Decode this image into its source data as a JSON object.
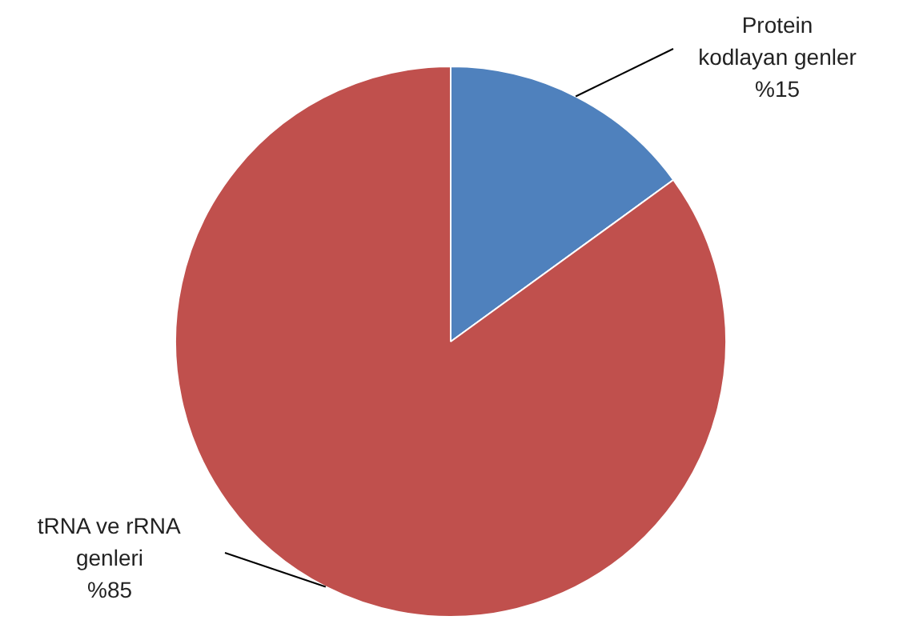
{
  "chart_data": {
    "type": "pie",
    "categories": [
      "Protein kodlayan genler",
      "tRNA ve rRNA genleri"
    ],
    "values": [
      15,
      85
    ],
    "colors": [
      "#4f81bd",
      "#c0504d"
    ],
    "value_labels": [
      "%15",
      "%85"
    ]
  }
}
